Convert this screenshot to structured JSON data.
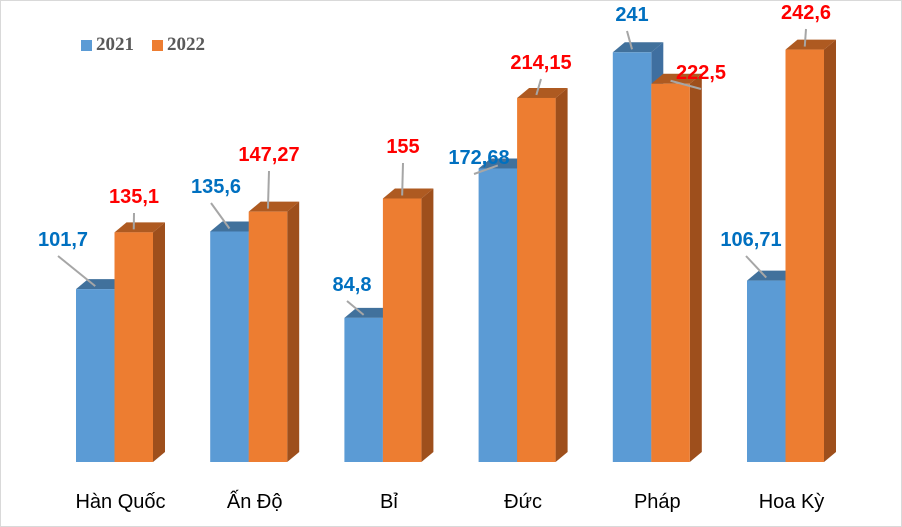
{
  "chart_data": {
    "type": "bar",
    "style": "3d-clustered-column",
    "categories": [
      "Hàn Quốc",
      "Ấn Độ",
      "Bỉ",
      "Đức",
      "Pháp",
      "Hoa Kỳ"
    ],
    "series": [
      {
        "name": "2021",
        "values": [
          101.7,
          135.6,
          84.8,
          172.68,
          241,
          106.71
        ],
        "labels": [
          "101,7",
          "135,6",
          "84,8",
          "172,68",
          "241",
          "106,71"
        ],
        "color": "#5b9bd5",
        "label_color": "#0070c0"
      },
      {
        "name": "2022",
        "values": [
          135.1,
          147.27,
          155,
          214.15,
          222.5,
          242.6
        ],
        "labels": [
          "135,1",
          "147,27",
          "155",
          "214,15",
          "222,5",
          "242,6"
        ],
        "color": "#ed7d31",
        "label_color": "#ff0000"
      }
    ],
    "title": "",
    "xlabel": "",
    "ylabel": "",
    "ylim": [
      0,
      250
    ],
    "grid": false,
    "axes_visible": false,
    "legend_position": "top-left"
  }
}
